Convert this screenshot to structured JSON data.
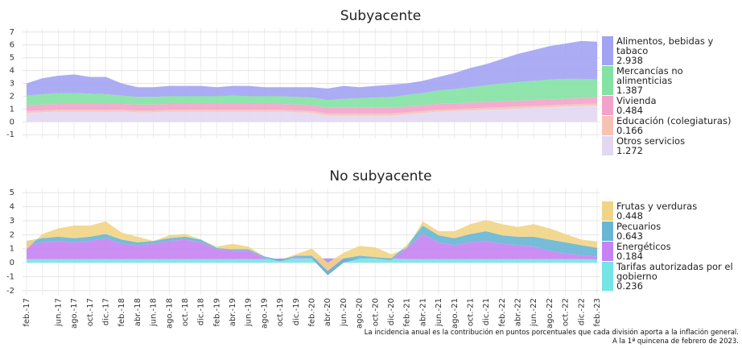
{
  "chart_data": [
    {
      "type": "stacked_area",
      "title": "Subyacente",
      "ylim": [
        -1.3,
        7.3
      ],
      "yticks": [
        -1,
        0,
        1,
        2,
        3,
        4,
        5,
        6,
        7
      ],
      "grid": true,
      "series": [
        {
          "name": "Otros servicios",
          "color": "#e2d8f2",
          "values": [
            0.7,
            0.75,
            0.8,
            0.8,
            0.8,
            0.8,
            0.8,
            0.75,
            0.75,
            0.8,
            0.8,
            0.8,
            0.8,
            0.8,
            0.8,
            0.8,
            0.8,
            0.75,
            0.7,
            0.5,
            0.5,
            0.5,
            0.5,
            0.5,
            0.6,
            0.7,
            0.8,
            0.85,
            0.9,
            0.95,
            1.0,
            1.05,
            1.1,
            1.15,
            1.2,
            1.25,
            1.272
          ]
        },
        {
          "name": "Educación (colegiaturas)",
          "color": "#f6c2b4",
          "values": [
            0.15,
            0.15,
            0.15,
            0.15,
            0.15,
            0.15,
            0.15,
            0.15,
            0.15,
            0.15,
            0.15,
            0.15,
            0.15,
            0.15,
            0.15,
            0.15,
            0.15,
            0.15,
            0.15,
            0.15,
            0.15,
            0.15,
            0.15,
            0.15,
            0.15,
            0.15,
            0.15,
            0.15,
            0.15,
            0.15,
            0.15,
            0.15,
            0.15,
            0.15,
            0.15,
            0.15,
            0.166
          ]
        },
        {
          "name": "Vivienda",
          "color": "#f3a3cb",
          "values": [
            0.45,
            0.45,
            0.45,
            0.45,
            0.45,
            0.45,
            0.45,
            0.45,
            0.45,
            0.45,
            0.45,
            0.45,
            0.45,
            0.45,
            0.45,
            0.45,
            0.45,
            0.45,
            0.45,
            0.45,
            0.45,
            0.45,
            0.45,
            0.45,
            0.45,
            0.45,
            0.45,
            0.45,
            0.45,
            0.45,
            0.45,
            0.45,
            0.45,
            0.45,
            0.45,
            0.45,
            0.484
          ]
        },
        {
          "name": "Mercancías no alimenticias",
          "color": "#84e2a4",
          "values": [
            0.75,
            0.8,
            0.85,
            0.85,
            0.8,
            0.75,
            0.65,
            0.6,
            0.6,
            0.6,
            0.6,
            0.6,
            0.6,
            0.65,
            0.6,
            0.6,
            0.6,
            0.6,
            0.6,
            0.6,
            0.7,
            0.75,
            0.8,
            0.85,
            0.9,
            0.95,
            1.05,
            1.1,
            1.2,
            1.3,
            1.4,
            1.45,
            1.5,
            1.55,
            1.55,
            1.5,
            1.387
          ]
        },
        {
          "name": "Alimentos, bebidas y tabaco",
          "color": "#a3a3f3",
          "values": [
            0.95,
            1.25,
            1.35,
            1.45,
            1.3,
            1.35,
            0.95,
            0.75,
            0.75,
            0.8,
            0.8,
            0.8,
            0.7,
            0.75,
            0.8,
            0.7,
            0.7,
            0.75,
            0.8,
            0.9,
            1.0,
            0.85,
            0.9,
            0.95,
            0.9,
            0.95,
            1.05,
            1.25,
            1.5,
            1.65,
            1.9,
            2.2,
            2.4,
            2.6,
            2.75,
            2.95,
            2.938
          ]
        }
      ]
    },
    {
      "type": "stacked_area",
      "title": "No subyacente",
      "ylim": [
        -2.3,
        5.3
      ],
      "yticks": [
        -2,
        -1,
        0,
        1,
        2,
        3,
        4,
        5
      ],
      "grid": true,
      "categories": [
        "feb.-17",
        null,
        "jun.-17",
        "ago.-17",
        "oct.-17",
        "dic.-17",
        "feb.-18",
        "abr.-18",
        "jun.-18",
        "ago.-18",
        "oct.-18",
        "dic.-18",
        "feb.-19",
        "abr.-19",
        "jun.-19",
        "ago.-19",
        "oct.-19",
        "dic.-19",
        "feb.-20",
        "abr.-20",
        "jun.-20",
        "ago.-20",
        "oct.-20",
        "dic.-20",
        "feb.-21",
        "abr.-21",
        "jun.-21",
        "ago.-21",
        "oct.-21",
        "dic.-21",
        "feb.-22",
        "abr.-22",
        "jun.-22",
        "ago.-22",
        "oct.-22",
        "dic.-22",
        "feb.-23"
      ],
      "series": [
        {
          "name": "Tarifas autorizadas por el gobierno",
          "color": "#74e4e4",
          "values": [
            0.25,
            0.25,
            0.25,
            0.25,
            0.25,
            0.25,
            0.25,
            0.25,
            0.25,
            0.25,
            0.25,
            0.25,
            0.25,
            0.25,
            0.25,
            0.25,
            0.3,
            0.3,
            0.3,
            0.3,
            0.3,
            0.3,
            0.3,
            0.3,
            0.25,
            0.25,
            0.25,
            0.25,
            0.25,
            0.25,
            0.25,
            0.25,
            0.25,
            0.25,
            0.25,
            0.25,
            0.236
          ]
        },
        {
          "name": "Energéticos",
          "color": "#c583f3",
          "values": [
            1.0,
            1.2,
            1.3,
            1.2,
            1.3,
            1.5,
            1.1,
            1.0,
            1.1,
            1.3,
            1.4,
            1.2,
            0.7,
            0.6,
            0.6,
            0.1,
            -0.2,
            0.1,
            0.0,
            -1.2,
            -0.3,
            0.0,
            0.0,
            -0.1,
            0.8,
            1.8,
            1.2,
            1.0,
            1.2,
            1.3,
            1.1,
            1.0,
            0.9,
            0.6,
            0.4,
            0.3,
            0.184
          ]
        },
        {
          "name": "Pecuarios",
          "color": "#66b6d4",
          "values": [
            0.3,
            0.3,
            0.3,
            0.3,
            0.3,
            0.3,
            0.3,
            0.2,
            0.2,
            0.2,
            0.2,
            0.2,
            0.1,
            0.1,
            0.1,
            0.1,
            0.1,
            0.1,
            0.2,
            0.3,
            0.3,
            0.2,
            0.1,
            0.1,
            0.2,
            0.6,
            0.5,
            0.5,
            0.6,
            0.7,
            0.6,
            0.6,
            0.7,
            0.8,
            0.8,
            0.7,
            0.643
          ]
        },
        {
          "name": "Frutas y verduras",
          "color": "#f2d486",
          "values": [
            -0.6,
            0.3,
            0.6,
            0.9,
            0.8,
            0.9,
            0.5,
            0.4,
            0.0,
            0.2,
            0.2,
            0.0,
            0.1,
            0.4,
            0.2,
            0.0,
            0.0,
            0.1,
            0.5,
            0.6,
            0.4,
            0.7,
            0.7,
            0.3,
            -0.2,
            0.3,
            0.3,
            0.5,
            0.7,
            0.8,
            0.8,
            0.7,
            0.9,
            0.8,
            0.6,
            0.4,
            0.448
          ]
        }
      ]
    }
  ],
  "footnote": [
    "La incidencia anual es la contribución en puntos porcentuales que cada división aporta a la inflación general.",
    "A la 1ª quincena de febrero de 2023."
  ]
}
